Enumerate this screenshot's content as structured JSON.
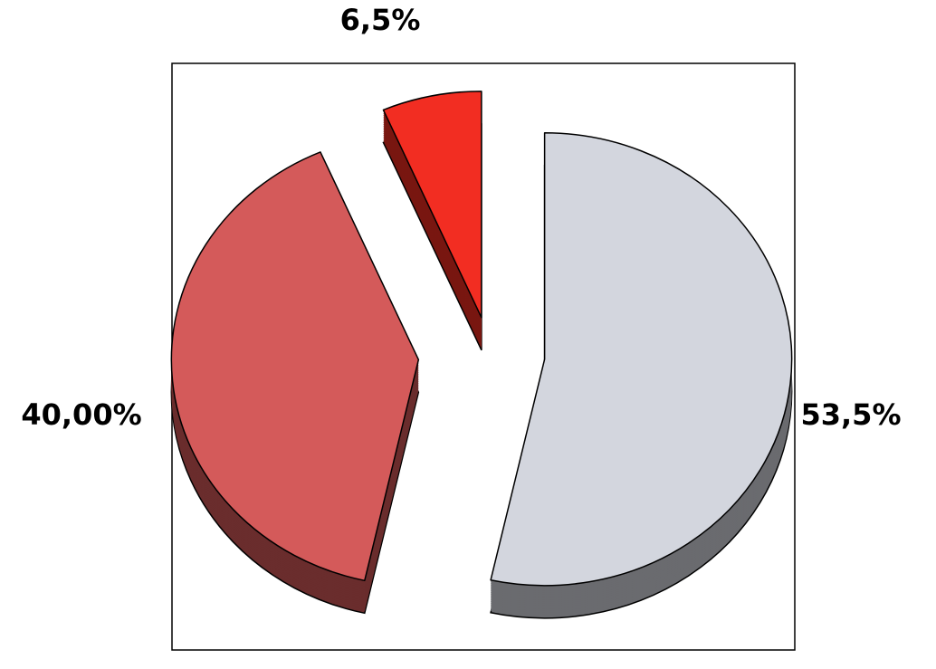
{
  "chart_data": {
    "type": "pie",
    "categories": [
      null,
      null,
      null
    ],
    "values": [
      53.5,
      40.0,
      6.5
    ],
    "value_labels": [
      "53,5%",
      "40,00%",
      "6,5%"
    ],
    "colors": [
      "#d3d6de",
      "#d45a5a",
      "#f22d22"
    ]
  }
}
